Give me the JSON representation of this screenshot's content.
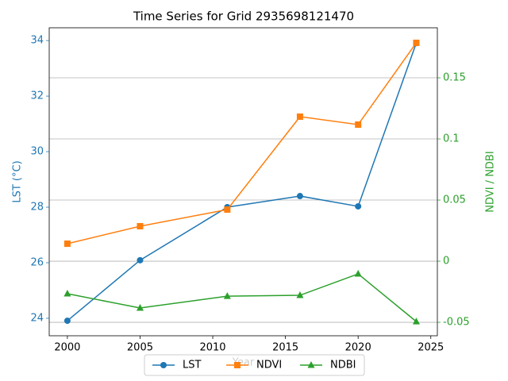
{
  "chart_data": {
    "type": "line",
    "title": "Time Series for Grid 2935698121470",
    "x_label": "Year",
    "y_label": "LST (°C)",
    "y2_label": "NDVI / NDBI",
    "x": [
      2000,
      2005,
      2011,
      2016,
      2020,
      2024
    ],
    "xlim": [
      1998.75,
      2025.45
    ],
    "xticks": [
      2000,
      2005,
      2010,
      2015,
      2020,
      2025
    ],
    "ylim": [
      23.37,
      34.46
    ],
    "yticks": [
      24,
      26,
      28,
      30,
      32,
      34
    ],
    "y2lim": [
      -0.061,
      0.1909
    ],
    "y2ticks": [
      -0.05,
      0.0,
      0.05,
      0.1,
      0.15
    ],
    "y_color": "#1f77b4",
    "y2_color": "#2ca02c",
    "grid": "y2",
    "legend": "lower center",
    "series": [
      {
        "name": "LST",
        "color": "#1f77b4",
        "marker": "circle",
        "values": [
          23.91,
          26.09,
          28.0,
          28.4,
          28.03,
          33.91
        ]
      },
      {
        "name": "NDVI",
        "color": "#ff7f0e",
        "marker": "square",
        "axis": "y2",
        "values": [
          0.0143,
          0.0286,
          0.0422,
          0.1182,
          0.1117,
          0.1786
        ]
      },
      {
        "name": "NDBI",
        "color": "#2ca02c",
        "marker": "triangle",
        "axis": "y2",
        "values": [
          -0.0266,
          -0.0383,
          -0.0286,
          -0.0279,
          -0.0104,
          -0.0494
        ]
      }
    ]
  }
}
